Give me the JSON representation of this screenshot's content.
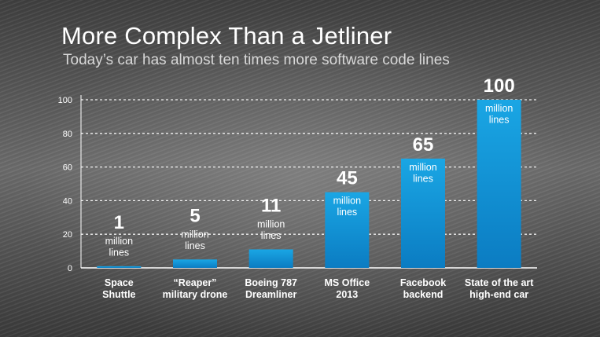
{
  "header": {
    "title": "More Complex Than a Jetliner",
    "subtitle": "Today’s car has almost ten times more software code lines"
  },
  "chart_data": {
    "type": "bar",
    "title": "More Complex Than a Jetliner",
    "subtitle": "Today’s car has almost ten times more software code lines",
    "xlabel": "",
    "ylabel": "",
    "categories": [
      [
        "Space",
        "Shuttle"
      ],
      [
        "“Reaper”",
        "military drone"
      ],
      [
        "Boeing 787",
        "Dreamliner"
      ],
      [
        "MS Office",
        "2013"
      ],
      [
        "Facebook",
        "backend"
      ],
      [
        "State of the art",
        "high-end car"
      ]
    ],
    "values": [
      1,
      5,
      11,
      45,
      65,
      100
    ],
    "value_labels": [
      "1",
      "5",
      "11",
      "45",
      "65",
      "100"
    ],
    "unit_label": [
      "million",
      "lines"
    ],
    "ylim": [
      0,
      100
    ],
    "yticks": [
      0,
      20,
      40,
      60,
      80,
      100
    ],
    "grid": true,
    "bar_color": "#1aa6e4",
    "bar_color_dark": "#0b7cc2"
  }
}
